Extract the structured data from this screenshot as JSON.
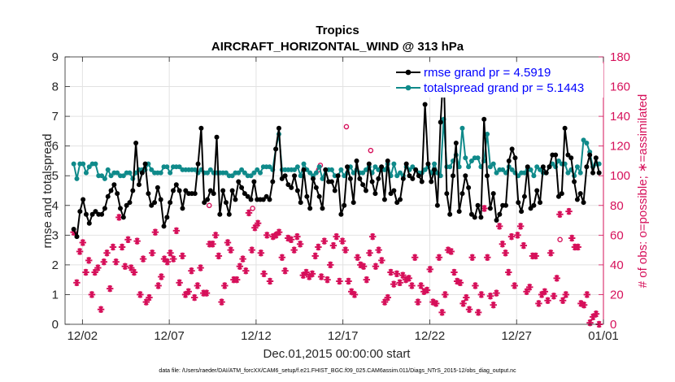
{
  "chart_data": {
    "type": "line",
    "title": "Tropics",
    "subtitle": "AIRCRAFT_HORIZONTAL_WIND @ 313 hPa",
    "xlabel": "Dec.01,2015 00:00:00 start",
    "ylabel_left": "rmse and totalspread",
    "ylabel_right": "# of obs: o=possible; ∗=assimilated",
    "footer": "data file: /Users/raeder/DAI/ATM_forcXX/CAM6_setup/f.e21.FHIST_BGC.f09_025.CAM6assim.011/Diags_NTrS_2015-12/obs_diag_output.nc",
    "xlim": [
      1,
      32
    ],
    "ylim_left": [
      0,
      9
    ],
    "ylim_right": [
      0,
      180
    ],
    "x_ticks": [
      2,
      7,
      12,
      17,
      22,
      27,
      32
    ],
    "x_tick_labels": [
      "12/02",
      "12/07",
      "12/12",
      "12/17",
      "12/22",
      "12/27",
      "01/01"
    ],
    "y_ticks_left": [
      "0",
      "1",
      "2",
      "3",
      "4",
      "5",
      "6",
      "7",
      "8",
      "9"
    ],
    "y_ticks_right": [
      "0",
      "20",
      "40",
      "60",
      "80",
      "100",
      "120",
      "140",
      "160",
      "180"
    ],
    "grid": true,
    "legend_position": "top-right",
    "colors": {
      "rmse": "#000000",
      "spread": "#0f8a8a",
      "obs": "#d6105a",
      "legend_text": "#0000ff"
    },
    "series": [
      {
        "name": "rmse grand pr = 4.5919",
        "axis": "left",
        "values": [
          3.2,
          2.95,
          3.8,
          4.2,
          3.7,
          3.4,
          3.7,
          3.8,
          3.7,
          3.7,
          3.9,
          4.3,
          4.5,
          4.7,
          4.4,
          3.9,
          3.6,
          4.0,
          4.1,
          4.5,
          6.1,
          4.7,
          5.1,
          5.4,
          4.4,
          4.0,
          4.1,
          4.6,
          4.2,
          3.3,
          3.6,
          4.1,
          4.5,
          4.7,
          4.5,
          3.9,
          4.5,
          4.4,
          4.4,
          4.4,
          5.4,
          6.6,
          4.1,
          4.2,
          4.5,
          4.4,
          6.3,
          3.7,
          4.5,
          4.1,
          3.7,
          4.5,
          4.2,
          4.8,
          4.6,
          4.4,
          4.3,
          4.2,
          4.8,
          4.2,
          4.2,
          4.2,
          4.3,
          4.2,
          4.8,
          5.9,
          6.6,
          4.9,
          5.0,
          4.7,
          4.6,
          5.0,
          4.5,
          4.1,
          5.2,
          4.3,
          3.9,
          4.9,
          4.6,
          4.3,
          3.9,
          5.2,
          4.8,
          4.8,
          4.5,
          5.0,
          3.7,
          4.0,
          5.3,
          4.9,
          4.1,
          5.5,
          4.9,
          4.7,
          4.5,
          5.4,
          4.8,
          4.4,
          4.9,
          5.3,
          4.2,
          5.5,
          4.4,
          4.5,
          4.1,
          4.2,
          4.9,
          5.4,
          5.0,
          4.9,
          5.2,
          5.0,
          4.8,
          7.4,
          5.4,
          4.8,
          5.2,
          4.0,
          6.8,
          8.6,
          4.4,
          3.7,
          5.0,
          6.1,
          3.8,
          4.4,
          5.0,
          4.6,
          3.7,
          3.6,
          4.0,
          3.6,
          6.9,
          5.0,
          3.9,
          4.4,
          3.5,
          3.7,
          4.0,
          4.0,
          5.5,
          5.9,
          5.6,
          4.1,
          3.8,
          4.3,
          5.3,
          3.9,
          4.0,
          4.5,
          4.1,
          5.3,
          5.1,
          5.3,
          5.7,
          5.7,
          4.3,
          4.4,
          6.6,
          5.7,
          5.6,
          4.8,
          4.2,
          4.4,
          4.1,
          5.3,
          5.7,
          5.1,
          5.6,
          5.1
        ]
      },
      {
        "name": "totalspread grand pr = 5.1443",
        "axis": "left",
        "values": [
          5.4,
          4.9,
          5.4,
          5.4,
          5.1,
          5.3,
          5.4,
          5.4,
          5.0,
          5.0,
          4.9,
          5.2,
          5.0,
          5.1,
          5.1,
          5.0,
          5.0,
          5.1,
          5.1,
          4.9,
          5.1,
          5.2,
          5.2,
          5.2,
          5.4,
          5.2,
          5.1,
          5.1,
          5.1,
          5.3,
          5.3,
          5.1,
          5.3,
          5.3,
          5.3,
          5.2,
          5.2,
          5.2,
          5.2,
          5.2,
          5.1,
          5.2,
          5.1,
          5.1,
          5.2,
          5.1,
          5.1,
          5.1,
          5.1,
          5.1,
          5.0,
          5.0,
          5.1,
          5.1,
          5.2,
          5.1,
          5.0,
          5.0,
          5.1,
          5.2,
          5.1,
          5.3,
          5.3,
          5.3,
          5.2,
          5.9,
          6.4,
          5.2,
          5.2,
          5.2,
          5.2,
          5.2,
          5.3,
          5.0,
          5.4,
          5.2,
          5.1,
          5.0,
          5.1,
          5.3,
          4.9,
          5.2,
          5.2,
          5.2,
          5.0,
          5.0,
          5.2,
          5.0,
          5.1,
          5.3,
          5.1,
          5.2,
          5.1,
          5.1,
          5.2,
          5.3,
          5.1,
          5.3,
          5.2,
          5.2,
          5.2,
          5.4,
          5.0,
          5.4,
          5.0,
          5.1,
          5.0,
          5.3,
          5.2,
          5.3,
          5.2,
          5.1,
          5.1,
          5.2,
          5.3,
          5.1,
          5.4,
          5.1,
          5.0,
          6.9,
          5.3,
          5.3,
          5.5,
          5.7,
          5.3,
          6.6,
          5.6,
          5.3,
          5.5,
          5.6,
          5.6,
          5.3,
          5.5,
          6.4,
          5.3,
          5.4,
          5.1,
          5.2,
          5.2,
          5.1,
          5.3,
          5.2,
          5.1,
          5.0,
          5.1,
          5.1,
          5.2,
          5.2,
          5.0,
          5.3,
          5.2,
          5.1,
          5.1,
          5.3,
          5.4,
          5.3,
          5.5,
          5.4,
          5.4,
          5.1,
          5.2,
          5.0,
          5.3,
          5.1,
          6.2,
          6.1,
          5.8,
          5.3,
          5.4,
          5.4
        ]
      },
      {
        "name": "# of obs assimilated",
        "axis": "right",
        "values": [
          62,
          28,
          49,
          55,
          35,
          43,
          20,
          35,
          38,
          10,
          42,
          48,
          24,
          52,
          42,
          72,
          52,
          39,
          57,
          38,
          35,
          56,
          20,
          44,
          15,
          18,
          48,
          62,
          26,
          32,
          44,
          42,
          48,
          44,
          63,
          28,
          46,
          20,
          22,
          36,
          18,
          26,
          38,
          21,
          21,
          54,
          54,
          60,
          46,
          15,
          26,
          55,
          50,
          30,
          30,
          39,
          44,
          36,
          75,
          50,
          65,
          68,
          48,
          34,
          60,
          29,
          59,
          60,
          62,
          45,
          36,
          58,
          57,
          50,
          59,
          54,
          33,
          35,
          32,
          34,
          46,
          52,
          32,
          56,
          30,
          40,
          53,
          59,
          29,
          56,
          50,
          29,
          22,
          20,
          45,
          40,
          39,
          30,
          48,
          59,
          39,
          50,
          43,
          15,
          18,
          35,
          27,
          34,
          28,
          33,
          30,
          31,
          26,
          45,
          15,
          26,
          22,
          23,
          37,
          15,
          14,
          45,
          8,
          20,
          50,
          49,
          35,
          29,
          28,
          14,
          18,
          10,
          45,
          26,
          8,
          20,
          78,
          45,
          19,
          13,
          21,
          66,
          54,
          48,
          35,
          59,
          26,
          60,
          66,
          53,
          22,
          25,
          46,
          46,
          14,
          20,
          22,
          16,
          48,
          19,
          31,
          74,
          16,
          20,
          76,
          58,
          52,
          52,
          14,
          13,
          20,
          1,
          5,
          7,
          0
        ]
      }
    ],
    "obs_possible_markers": [
      {
        "x": 15.6,
        "v": 104
      },
      {
        "x": 11.8,
        "v": 78
      },
      {
        "x": 13.2,
        "v": 61
      },
      {
        "x": 15.7,
        "v": 107
      },
      {
        "x": 17.2,
        "v": 133
      },
      {
        "x": 9.3,
        "v": 80
      },
      {
        "x": 18.6,
        "v": 117
      },
      {
        "x": 29.5,
        "v": 57
      }
    ]
  }
}
